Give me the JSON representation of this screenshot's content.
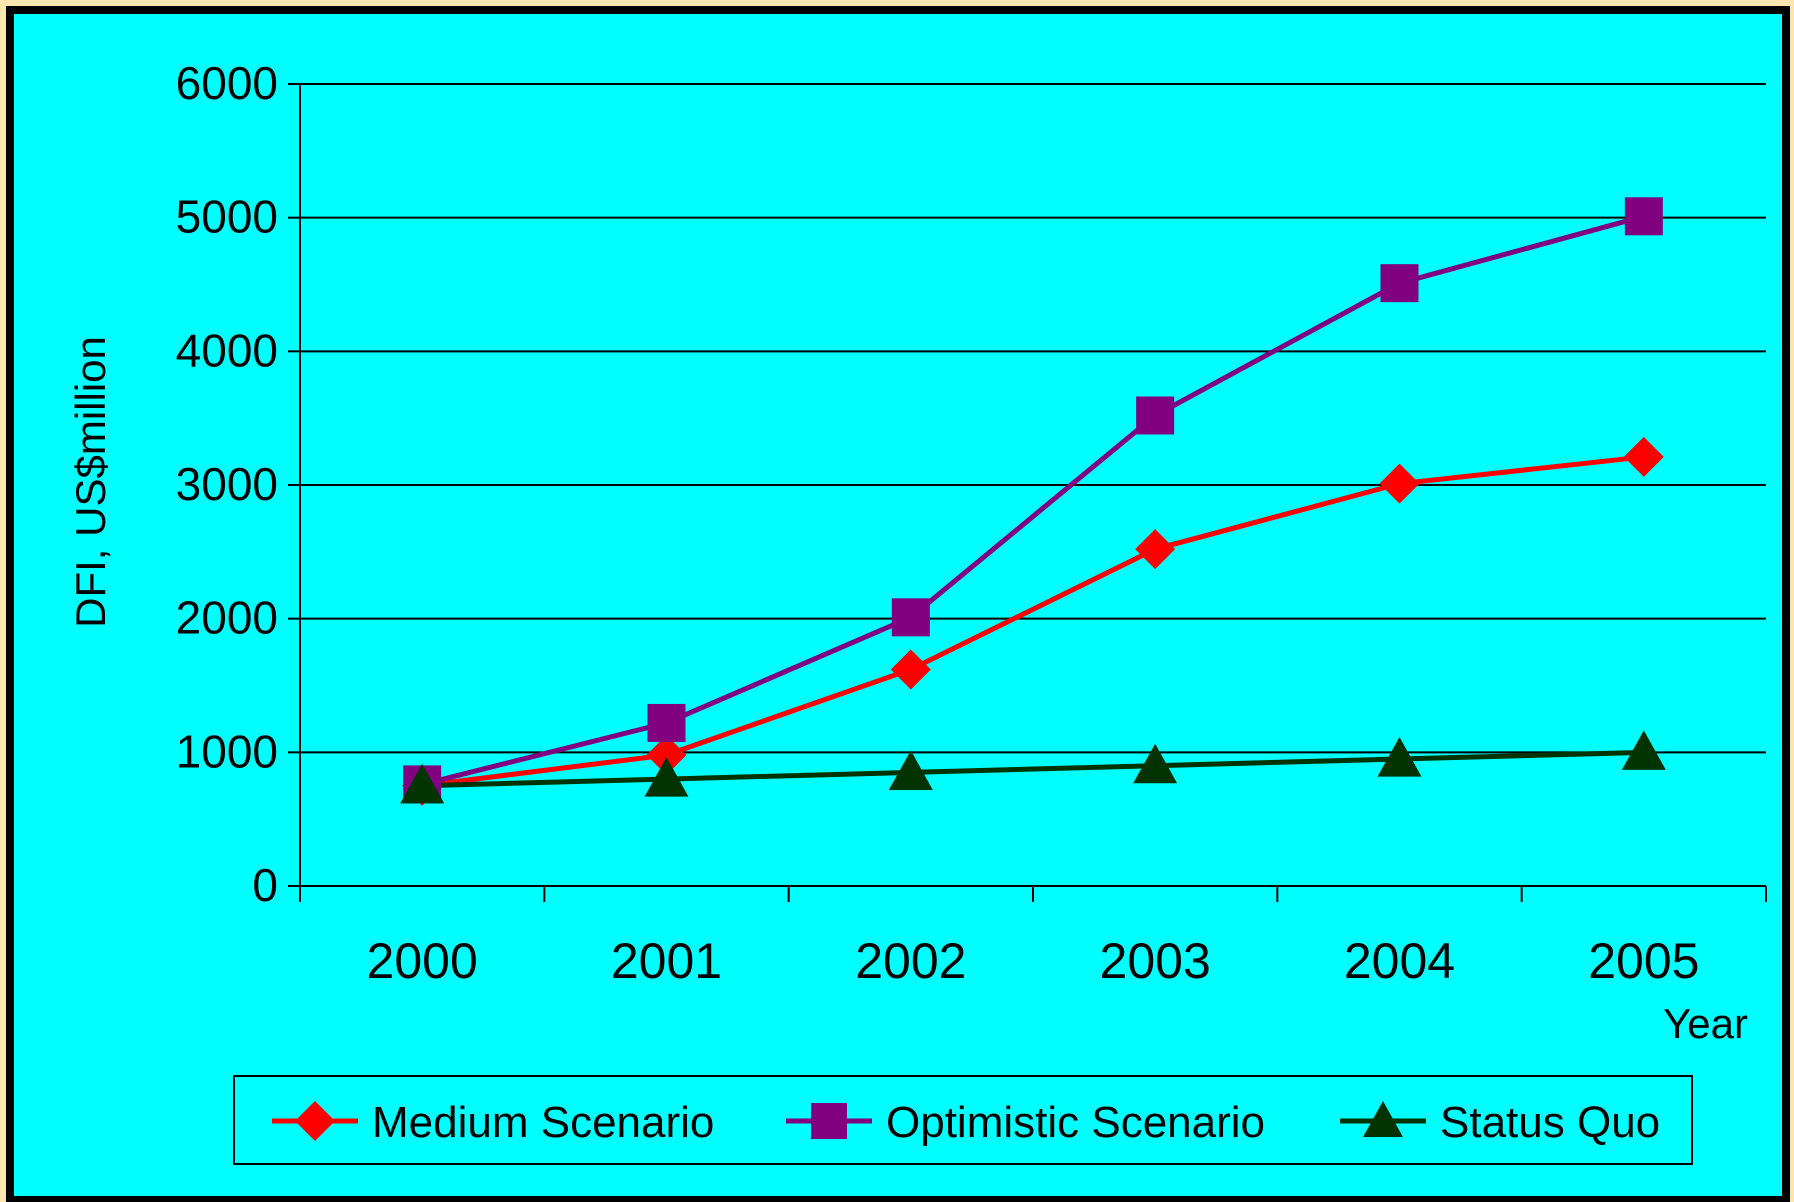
{
  "chart_data": {
    "type": "line",
    "title": "",
    "xlabel": "Year",
    "ylabel": "DFI, US$million",
    "categories": [
      "2000",
      "2001",
      "2002",
      "2003",
      "2004",
      "2005"
    ],
    "yticks": [
      "0",
      "1000",
      "2000",
      "3000",
      "4000",
      "5000",
      "6000"
    ],
    "ylim": [
      0,
      6000
    ],
    "grid": true,
    "legend_position": "bottom",
    "series": [
      {
        "name": "Medium Scenario",
        "values": [
          750,
          980,
          1620,
          2520,
          3010,
          3210
        ],
        "color": "#ff0000",
        "marker": "diamond"
      },
      {
        "name": "Optimistic Scenario",
        "values": [
          760,
          1220,
          2010,
          3520,
          4510,
          5010
        ],
        "color": "#800080",
        "marker": "square"
      },
      {
        "name": "Status Quo",
        "values": [
          750,
          800,
          850,
          900,
          950,
          1000
        ],
        "color": "#003300",
        "marker": "triangle"
      }
    ],
    "colors": {
      "background": "#00ffff",
      "outer": "#fbe6b0",
      "frame": "#000000"
    }
  }
}
